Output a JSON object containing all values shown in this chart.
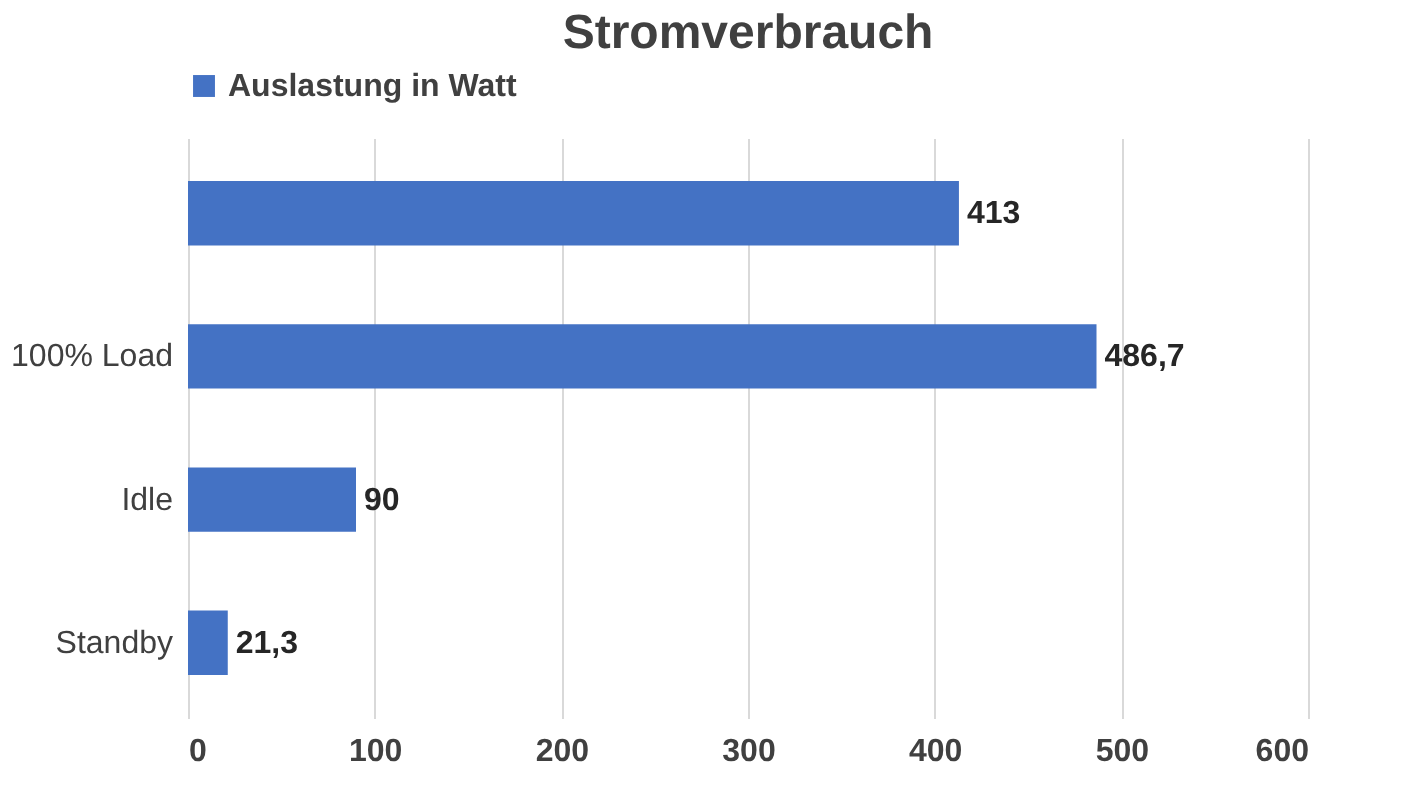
{
  "chart_data": {
    "type": "bar",
    "orientation": "horizontal",
    "title": "Stromverbrauch",
    "categories": [
      null,
      "100% Load",
      "Idle",
      "Standby"
    ],
    "series": [
      {
        "name": "Auslastung in Watt",
        "color": "#4472c4",
        "values": [
          413,
          486.7,
          90,
          21.3
        ],
        "value_labels": [
          "413",
          "486,7",
          "90",
          "21,3"
        ]
      }
    ],
    "xlim": [
      0,
      600
    ],
    "xticks": [
      0,
      100,
      200,
      300,
      400,
      500,
      600
    ],
    "grid": "x",
    "legend": "top"
  }
}
